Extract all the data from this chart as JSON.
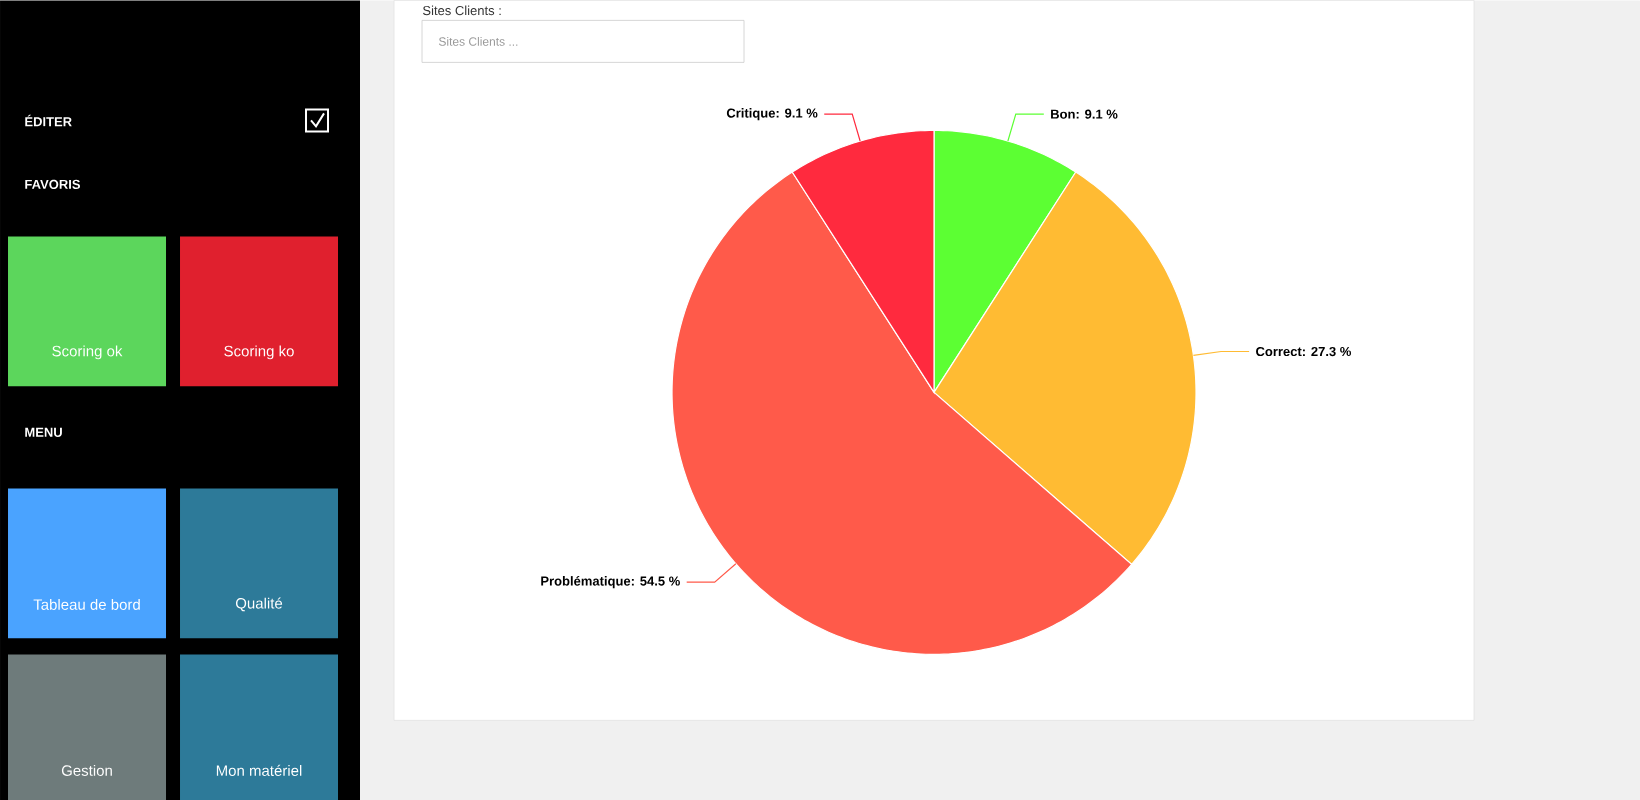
{
  "chart_data": {
    "type": "pie",
    "categories": [
      "Bon",
      "Correct",
      "Problématique",
      "Critique"
    ],
    "values": [
      9.1,
      27.3,
      54.5,
      9.1
    ],
    "colors": [
      "#5cff33",
      "#ffbb33",
      "#ff5a4a",
      "#ff2a3e"
    ],
    "value_labels": [
      ": 9.1 %",
      ": 27.3 %",
      ": 54.5 %",
      ": 9.1 %"
    ],
    "annotations": [
      "Sites Clients :",
      "Sites Clients ...",
      "ÉDITER",
      "FAVORIS",
      "Scoring ok",
      "Scoring ko",
      "MENU",
      "Tableau de bord",
      "Qualité",
      "Gestion",
      "Mon matériel"
    ]
  }
}
